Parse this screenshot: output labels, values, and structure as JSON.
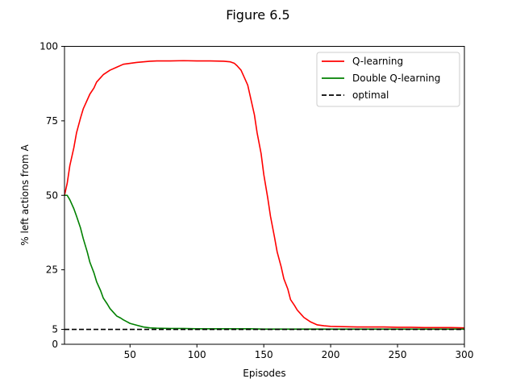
{
  "chart_data": {
    "type": "line",
    "title": "Figure 6.5",
    "xlabel": "Episodes",
    "ylabel": "% left actions from A",
    "xlim": [
      1,
      300
    ],
    "ylim": [
      0,
      100
    ],
    "xticks": [
      50,
      100,
      150,
      200,
      250,
      300
    ],
    "yticks": [
      0,
      5,
      25,
      50,
      75,
      100
    ],
    "grid": false,
    "legend_position": "top-right",
    "series": [
      {
        "name": "Q-learning",
        "color": "#ff0000",
        "style": "solid",
        "x": [
          1,
          3,
          5,
          8,
          10,
          13,
          15,
          18,
          20,
          23,
          25,
          28,
          30,
          35,
          40,
          45,
          50,
          55,
          60,
          65,
          70,
          80,
          90,
          100,
          110,
          120,
          125,
          128,
          130,
          133,
          135,
          138,
          140,
          143,
          145,
          148,
          150,
          153,
          155,
          158,
          160,
          163,
          165,
          168,
          170,
          173,
          175,
          178,
          180,
          185,
          190,
          195,
          200,
          210,
          220,
          230,
          240,
          250,
          260,
          270,
          280,
          290,
          300
        ],
        "y": [
          50,
          54,
          60,
          66,
          71,
          76,
          79,
          82,
          84,
          86,
          88,
          89.5,
          90.5,
          92,
          93,
          94,
          94.3,
          94.6,
          94.8,
          95,
          95.1,
          95.1,
          95.2,
          95.1,
          95.1,
          95,
          94.8,
          94.3,
          93.5,
          92,
          90,
          87,
          83,
          77,
          71,
          64,
          57,
          49,
          43,
          36,
          31,
          26,
          22,
          18.5,
          15,
          13,
          11.5,
          10,
          9,
          7.5,
          6.5,
          6.2,
          6,
          5.9,
          5.8,
          5.8,
          5.8,
          5.7,
          5.7,
          5.6,
          5.6,
          5.6,
          5.5
        ]
      },
      {
        "name": "Double Q-learning",
        "color": "#008000",
        "style": "solid",
        "x": [
          1,
          3,
          5,
          8,
          10,
          13,
          15,
          18,
          20,
          23,
          25,
          28,
          30,
          33,
          35,
          38,
          40,
          43,
          45,
          48,
          50,
          55,
          60,
          65,
          70,
          80,
          90,
          100,
          110,
          120,
          130,
          140,
          150,
          160,
          170,
          180,
          190,
          200,
          210,
          220,
          230,
          240,
          250,
          260,
          270,
          280,
          290,
          300
        ],
        "y": [
          50,
          50,
          48.5,
          45.5,
          43,
          39,
          35.5,
          31,
          27.5,
          24,
          21,
          18,
          15.5,
          13.5,
          12,
          10.5,
          9.5,
          8.8,
          8.2,
          7.5,
          7,
          6.4,
          5.8,
          5.5,
          5.4,
          5.3,
          5.3,
          5.2,
          5.2,
          5.2,
          5.2,
          5.2,
          5.1,
          5.1,
          5.1,
          5.1,
          5.1,
          5.1,
          5.1,
          5.1,
          5.1,
          5.1,
          5.1,
          5.1,
          5.1,
          5.1,
          5.1,
          5.1
        ]
      },
      {
        "name": "optimal",
        "color": "#000000",
        "style": "dashed",
        "x": [
          1,
          300
        ],
        "y": [
          5,
          5
        ]
      }
    ]
  }
}
